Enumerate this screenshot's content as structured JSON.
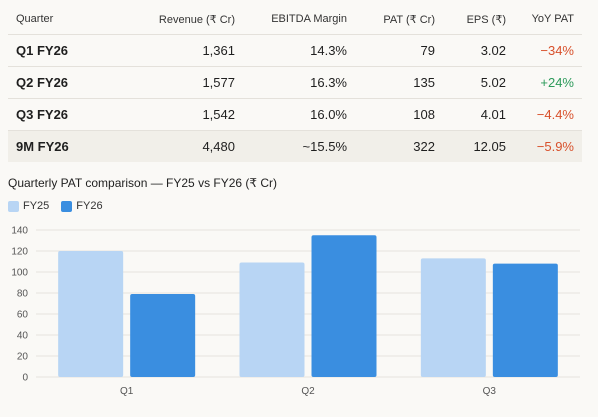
{
  "table": {
    "headers": [
      "Quarter",
      "Revenue (₹ Cr)",
      "EBITDA Margin",
      "PAT (₹ Cr)",
      "EPS (₹)",
      "YoY PAT"
    ],
    "rows": [
      {
        "quarter": "Q1 FY26",
        "revenue": "1,361",
        "ebitda_margin": "14.3%",
        "pat": "79",
        "eps": "3.02",
        "yoy_pat": "−34%",
        "yoy_sign": "neg"
      },
      {
        "quarter": "Q2 FY26",
        "revenue": "1,577",
        "ebitda_margin": "16.3%",
        "pat": "135",
        "eps": "5.02",
        "yoy_pat": "+24%",
        "yoy_sign": "pos"
      },
      {
        "quarter": "Q3 FY26",
        "revenue": "1,542",
        "ebitda_margin": "16.0%",
        "pat": "108",
        "eps": "4.01",
        "yoy_pat": "−4.4%",
        "yoy_sign": "neg"
      }
    ],
    "total": {
      "quarter": "9M FY26",
      "revenue": "4,480",
      "ebitda_margin": "~15.5%",
      "pat": "322",
      "eps": "12.05",
      "yoy_pat": "−5.9%",
      "yoy_sign": "neg"
    }
  },
  "colors": {
    "positive": "#2c9a5a",
    "negative": "#d8502b",
    "fy25": "#b8d5f4",
    "fy26": "#3a8ee0"
  },
  "chart_data": {
    "type": "bar",
    "title": "Quarterly PAT comparison — FY25 vs FY26 (₹ Cr)",
    "categories": [
      "Q1",
      "Q2",
      "Q3"
    ],
    "series": [
      {
        "name": "FY25",
        "values": [
          120,
          109,
          113
        ],
        "color": "#b8d5f4"
      },
      {
        "name": "FY26",
        "values": [
          79,
          135,
          108
        ],
        "color": "#3a8ee0"
      }
    ],
    "ylim": [
      0,
      140
    ],
    "yticks": [
      0,
      20,
      40,
      60,
      80,
      100,
      120,
      140
    ],
    "grid": true,
    "legend": "top-left"
  }
}
